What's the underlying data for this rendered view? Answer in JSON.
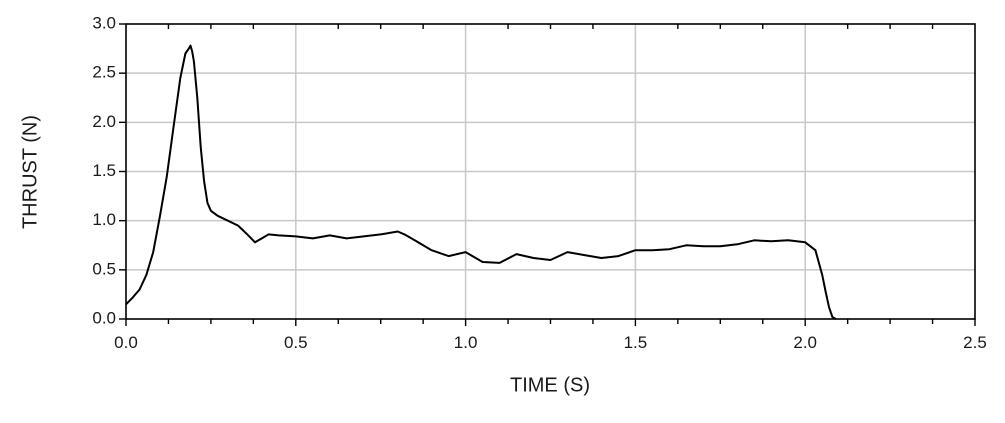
{
  "chart_data": {
    "type": "line",
    "title": "",
    "xlabel": "TIME (S)",
    "ylabel": "THRUST (N)",
    "xlim": [
      0.0,
      2.5
    ],
    "ylim": [
      0.0,
      3.0
    ],
    "x_ticks": [
      "0.0",
      "0.5",
      "1.0",
      "1.5",
      "2.0",
      "2.5"
    ],
    "y_ticks": [
      "0.0",
      "0.5",
      "1.0",
      "1.5",
      "2.0",
      "2.5",
      "3.0"
    ],
    "x_minor_tick_step": 0.125,
    "grid": true,
    "legend": "none",
    "line_color": "#000000",
    "grid_color": "#c8c8c8",
    "series": [
      {
        "x": [
          0.0,
          0.02,
          0.04,
          0.06,
          0.08,
          0.1,
          0.12,
          0.14,
          0.16,
          0.175,
          0.185,
          0.19,
          0.195,
          0.2,
          0.21,
          0.22,
          0.23,
          0.24,
          0.25,
          0.27,
          0.3,
          0.33,
          0.36,
          0.38,
          0.4,
          0.42,
          0.45,
          0.5,
          0.55,
          0.6,
          0.65,
          0.7,
          0.75,
          0.8,
          0.82,
          0.85,
          0.9,
          0.95,
          1.0,
          1.05,
          1.1,
          1.15,
          1.2,
          1.25,
          1.3,
          1.35,
          1.4,
          1.45,
          1.5,
          1.55,
          1.6,
          1.65,
          1.7,
          1.75,
          1.8,
          1.85,
          1.9,
          1.95,
          2.0,
          2.03,
          2.05,
          2.06,
          2.07,
          2.08,
          2.09
        ],
        "y": [
          0.15,
          0.22,
          0.3,
          0.45,
          0.68,
          1.05,
          1.45,
          1.95,
          2.45,
          2.7,
          2.75,
          2.78,
          2.72,
          2.62,
          2.25,
          1.75,
          1.4,
          1.18,
          1.1,
          1.05,
          1.0,
          0.95,
          0.85,
          0.78,
          0.82,
          0.86,
          0.85,
          0.84,
          0.82,
          0.85,
          0.82,
          0.84,
          0.86,
          0.89,
          0.86,
          0.8,
          0.7,
          0.64,
          0.68,
          0.58,
          0.57,
          0.66,
          0.62,
          0.6,
          0.68,
          0.65,
          0.62,
          0.64,
          0.7,
          0.7,
          0.71,
          0.75,
          0.74,
          0.74,
          0.76,
          0.8,
          0.79,
          0.8,
          0.78,
          0.7,
          0.45,
          0.28,
          0.12,
          0.02,
          0.0
        ]
      }
    ]
  }
}
